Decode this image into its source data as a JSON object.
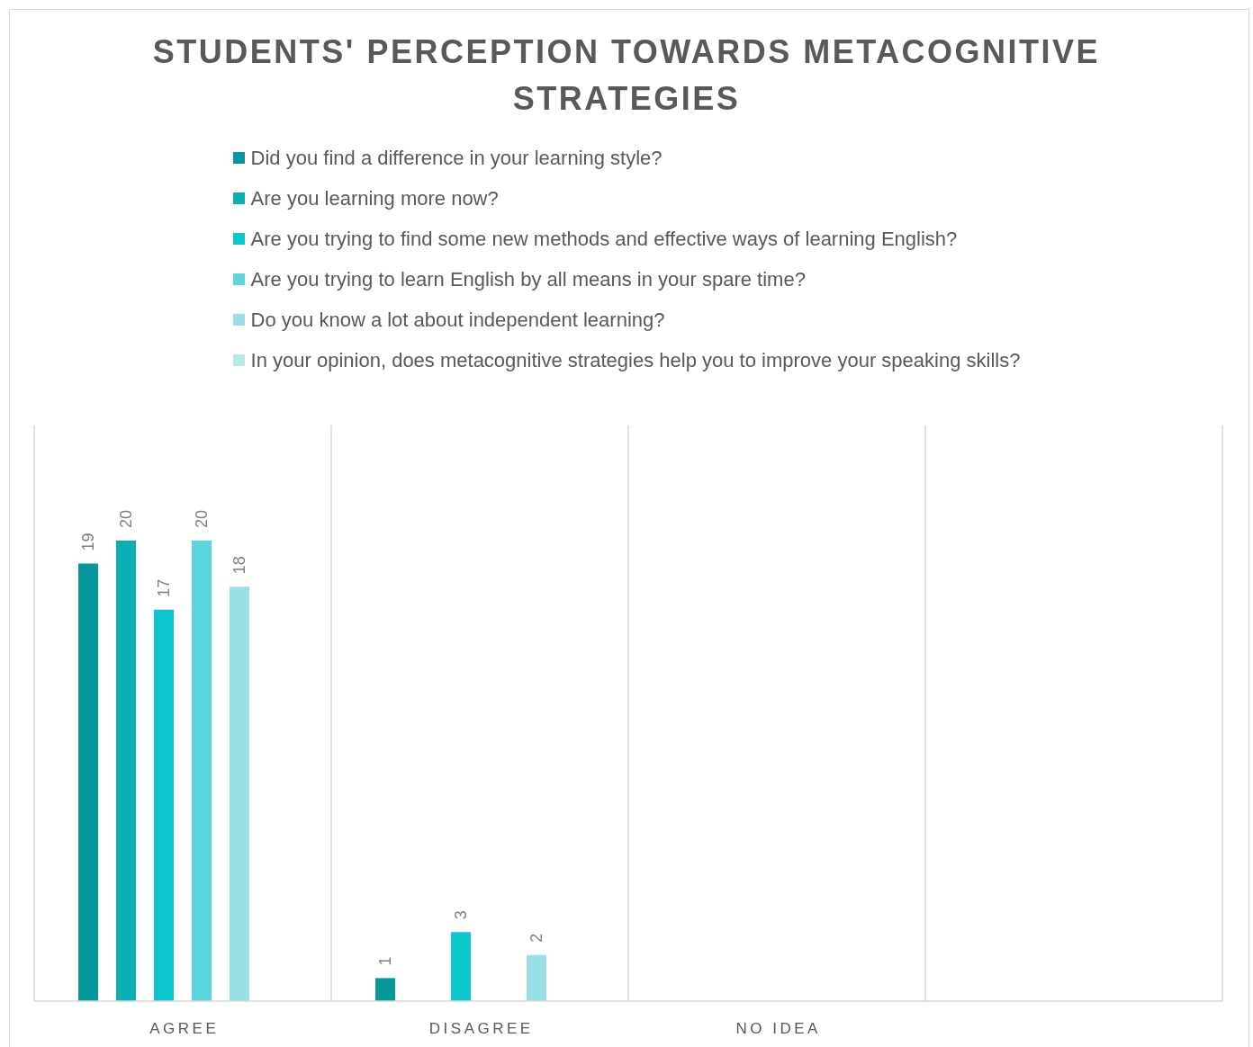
{
  "chart_data": {
    "type": "bar",
    "title": "STUDENTS' PERCEPTION TOWARDS METACOGNITIVE STRATEGIES",
    "categories": [
      "AGREE",
      "DISAGREE",
      "NO IDEA",
      null
    ],
    "series": [
      {
        "name": "Did you find a difference in your learning style?",
        "color": "#06979c",
        "values": [
          19,
          1,
          null,
          null
        ]
      },
      {
        "name": "Are you learning more now?",
        "color": "#0aafb5",
        "values": [
          20,
          null,
          null,
          null
        ]
      },
      {
        "name": "Are you trying to find some new methods and effective ways of learning English?",
        "color": "#0bc6cf",
        "values": [
          17,
          3,
          null,
          null
        ]
      },
      {
        "name": "Are you trying to learn English by all means in your spare time?",
        "color": "#5bd6dd",
        "values": [
          20,
          null,
          null,
          null
        ]
      },
      {
        "name": "Do you know a lot about independent learning?",
        "color": "#99e0e6",
        "values": [
          18,
          2,
          null,
          null
        ]
      },
      {
        "name": "In your opinion, does metacognitive strategies help you to improve your speaking skills?",
        "color": "#b7e8ec",
        "values": [
          null,
          null,
          null,
          null
        ]
      }
    ],
    "ylim": [
      0,
      25
    ],
    "tick_labels": "x",
    "grid": "x",
    "legend": "top",
    "data_labels": true
  }
}
